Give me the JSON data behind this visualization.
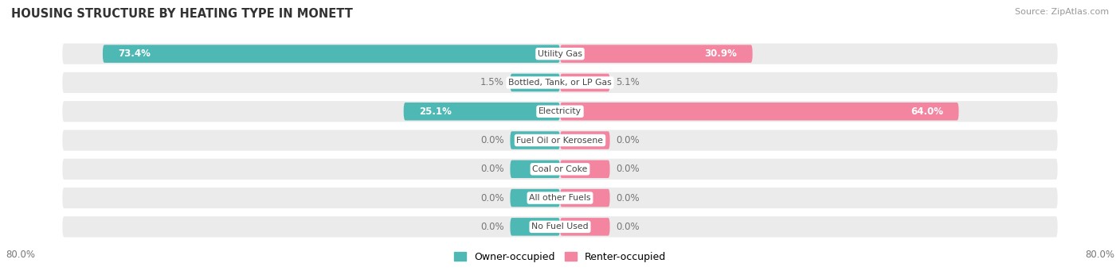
{
  "title": "HOUSING STRUCTURE BY HEATING TYPE IN MONETT",
  "source": "Source: ZipAtlas.com",
  "categories": [
    "Utility Gas",
    "Bottled, Tank, or LP Gas",
    "Electricity",
    "Fuel Oil or Kerosene",
    "Coal or Coke",
    "All other Fuels",
    "No Fuel Used"
  ],
  "owner_values": [
    73.4,
    1.5,
    25.1,
    0.0,
    0.0,
    0.0,
    0.0
  ],
  "renter_values": [
    30.9,
    5.1,
    64.0,
    0.0,
    0.0,
    0.0,
    0.0
  ],
  "owner_color": "#4db8b4",
  "renter_color": "#f485a0",
  "label_color_dark": "#777777",
  "axis_max": 80.0,
  "axis_label_left": "80.0%",
  "axis_label_right": "80.0%",
  "row_bg_color": "#ebebeb",
  "center_label_color": "#444444",
  "title_color": "#333333",
  "source_color": "#999999",
  "legend_owner": "Owner-occupied",
  "legend_renter": "Renter-occupied",
  "min_bar_width": 8.0,
  "bar_height": 0.62
}
